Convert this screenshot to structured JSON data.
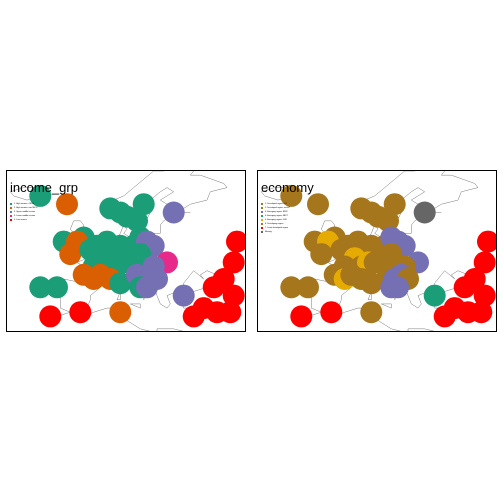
{
  "panels": [
    {
      "id": "income",
      "title": "income_grp",
      "legend": [
        {
          "label": "1. High income: OECD",
          "color": "#1B9E77"
        },
        {
          "label": "2. High income: nonOECD",
          "color": "#D95F02"
        },
        {
          "label": "3. Upper middle income",
          "color": "#7570B3"
        },
        {
          "label": "4. Lower middle income",
          "color": "#E7298A"
        },
        {
          "label": "5. Low income",
          "color": "#FF0000"
        }
      ],
      "bubbles": [
        {
          "lon": -15,
          "lat": 64,
          "color": "#1B9E77"
        },
        {
          "lon": -7,
          "lat": 62,
          "color": "#D95F02"
        },
        {
          "lon": 6,
          "lat": 61,
          "color": "#1B9E77"
        },
        {
          "lon": 9,
          "lat": 60,
          "color": "#1B9E77"
        },
        {
          "lon": 16,
          "lat": 62,
          "color": "#1B9E77"
        },
        {
          "lon": 11,
          "lat": 59,
          "color": "#1B9E77"
        },
        {
          "lon": 14,
          "lat": 58,
          "color": "#1B9E77"
        },
        {
          "lon": 25,
          "lat": 60,
          "color": "#7570B3"
        },
        {
          "lon": -8,
          "lat": 53,
          "color": "#1B9E77"
        },
        {
          "lon": -2,
          "lat": 54,
          "color": "#1B9E77"
        },
        {
          "lon": -4,
          "lat": 53,
          "color": "#D95F02"
        },
        {
          "lon": -6,
          "lat": 50,
          "color": "#D95F02"
        },
        {
          "lon": 0,
          "lat": 51,
          "color": "#1B9E77"
        },
        {
          "lon": 2,
          "lat": 52,
          "color": "#1B9E77"
        },
        {
          "lon": 5,
          "lat": 53,
          "color": "#1B9E77"
        },
        {
          "lon": 7,
          "lat": 51,
          "color": "#1B9E77"
        },
        {
          "lon": 9,
          "lat": 52,
          "color": "#1B9E77"
        },
        {
          "lon": 13,
          "lat": 52,
          "color": "#1B9E77"
        },
        {
          "lon": 11,
          "lat": 50,
          "color": "#1B9E77"
        },
        {
          "lon": 15,
          "lat": 54,
          "color": "#1B9E77"
        },
        {
          "lon": 17,
          "lat": 53,
          "color": "#7570B3"
        },
        {
          "lon": 19,
          "lat": 52,
          "color": "#7570B3"
        },
        {
          "lon": 4,
          "lat": 49,
          "color": "#1B9E77"
        },
        {
          "lon": 1,
          "lat": 47,
          "color": "#1B9E77"
        },
        {
          "lon": 6,
          "lat": 47,
          "color": "#1B9E77"
        },
        {
          "lon": 8,
          "lat": 48,
          "color": "#1B9E77"
        },
        {
          "lon": 10,
          "lat": 48,
          "color": "#1B9E77"
        },
        {
          "lon": 13,
          "lat": 48,
          "color": "#1B9E77"
        },
        {
          "lon": 15,
          "lat": 50,
          "color": "#1B9E77"
        },
        {
          "lon": 23,
          "lat": 48,
          "color": "#E7298A"
        },
        {
          "lon": 19,
          "lat": 47,
          "color": "#7570B3"
        },
        {
          "lon": -2,
          "lat": 45,
          "color": "#D95F02"
        },
        {
          "lon": 1,
          "lat": 44,
          "color": "#D95F02"
        },
        {
          "lon": 3,
          "lat": 45,
          "color": "#D95F02"
        },
        {
          "lon": 6,
          "lat": 44,
          "color": "#D95F02"
        },
        {
          "lon": 9,
          "lat": 43,
          "color": "#1B9E77"
        },
        {
          "lon": 14,
          "lat": 45,
          "color": "#7570B3"
        },
        {
          "lon": 16,
          "lat": 44,
          "color": "#7570B3"
        },
        {
          "lon": 18,
          "lat": 45,
          "color": "#7570B3"
        },
        {
          "lon": 20,
          "lat": 44,
          "color": "#7570B3"
        },
        {
          "lon": 15,
          "lat": 42,
          "color": "#1B9E77"
        },
        {
          "lon": 17,
          "lat": 42,
          "color": "#7570B3"
        },
        {
          "lon": -15,
          "lat": 42,
          "color": "#1B9E77"
        },
        {
          "lon": -10,
          "lat": 42,
          "color": "#1B9E77"
        },
        {
          "lon": -12,
          "lat": 35,
          "color": "#FF0000"
        },
        {
          "lon": -3,
          "lat": 36,
          "color": "#FF0000"
        },
        {
          "lon": 9,
          "lat": 36,
          "color": "#D95F02"
        },
        {
          "lon": 28,
          "lat": 40,
          "color": "#7570B3"
        },
        {
          "lon": 44,
          "lat": 53,
          "color": "#FF0000"
        },
        {
          "lon": 43,
          "lat": 48,
          "color": "#FF0000"
        },
        {
          "lon": 40,
          "lat": 44,
          "color": "#FF0000"
        },
        {
          "lon": 37,
          "lat": 42,
          "color": "#FF0000"
        },
        {
          "lon": 43,
          "lat": 40,
          "color": "#FF0000"
        },
        {
          "lon": 34,
          "lat": 37,
          "color": "#FF0000"
        },
        {
          "lon": 38,
          "lat": 36,
          "color": "#FF0000"
        },
        {
          "lon": 42,
          "lat": 36,
          "color": "#FF0000"
        },
        {
          "lon": 31,
          "lat": 35,
          "color": "#FF0000"
        }
      ]
    },
    {
      "id": "economy",
      "title": "economy",
      "legend": [
        {
          "label": "1. Developed region: G7",
          "color": "#A6761D"
        },
        {
          "label": "2. Developed region: nonG7",
          "color": "#A6761D"
        },
        {
          "label": "3. Emerging region: BRIC",
          "color": "#7570B3"
        },
        {
          "label": "4. Emerging region: MIKT",
          "color": "#1B9E77"
        },
        {
          "label": "5. Emerging region: G20",
          "color": "#E6AB02"
        },
        {
          "label": "6. Developing region",
          "color": "#A6761D"
        },
        {
          "label": "7. Least developed region",
          "color": "#FF0000"
        },
        {
          "label": "Missing",
          "color": "#666666"
        }
      ],
      "bubbles": [
        {
          "lon": -15,
          "lat": 64,
          "color": "#A6761D"
        },
        {
          "lon": -7,
          "lat": 62,
          "color": "#A6761D"
        },
        {
          "lon": 6,
          "lat": 61,
          "color": "#A6761D"
        },
        {
          "lon": 9,
          "lat": 60,
          "color": "#A6761D"
        },
        {
          "lon": 16,
          "lat": 62,
          "color": "#A6761D"
        },
        {
          "lon": 11,
          "lat": 59,
          "color": "#A6761D"
        },
        {
          "lon": 14,
          "lat": 58,
          "color": "#A6761D"
        },
        {
          "lon": 25,
          "lat": 60,
          "color": "#666666"
        },
        {
          "lon": -8,
          "lat": 53,
          "color": "#A6761D"
        },
        {
          "lon": -2,
          "lat": 54,
          "color": "#A6761D"
        },
        {
          "lon": -4,
          "lat": 53,
          "color": "#E6AB02"
        },
        {
          "lon": -6,
          "lat": 50,
          "color": "#A6761D"
        },
        {
          "lon": 0,
          "lat": 51,
          "color": "#A6761D"
        },
        {
          "lon": 2,
          "lat": 52,
          "color": "#A6761D"
        },
        {
          "lon": 5,
          "lat": 53,
          "color": "#A6761D"
        },
        {
          "lon": 7,
          "lat": 51,
          "color": "#A6761D"
        },
        {
          "lon": 9,
          "lat": 52,
          "color": "#A6761D"
        },
        {
          "lon": 13,
          "lat": 52,
          "color": "#A6761D"
        },
        {
          "lon": 11,
          "lat": 50,
          "color": "#A6761D"
        },
        {
          "lon": 15,
          "lat": 54,
          "color": "#7570B3"
        },
        {
          "lon": 17,
          "lat": 53,
          "color": "#7570B3"
        },
        {
          "lon": 19,
          "lat": 52,
          "color": "#7570B3"
        },
        {
          "lon": 4,
          "lat": 49,
          "color": "#E6AB02"
        },
        {
          "lon": 1,
          "lat": 47,
          "color": "#A6761D"
        },
        {
          "lon": 6,
          "lat": 47,
          "color": "#A6761D"
        },
        {
          "lon": 8,
          "lat": 48,
          "color": "#E6AB02"
        },
        {
          "lon": 10,
          "lat": 48,
          "color": "#A6761D"
        },
        {
          "lon": 13,
          "lat": 48,
          "color": "#A6761D"
        },
        {
          "lon": 15,
          "lat": 50,
          "color": "#A6761D"
        },
        {
          "lon": 23,
          "lat": 48,
          "color": "#7570B3"
        },
        {
          "lon": 19,
          "lat": 47,
          "color": "#A6761D"
        },
        {
          "lon": -2,
          "lat": 45,
          "color": "#A6761D"
        },
        {
          "lon": 1,
          "lat": 44,
          "color": "#E6AB02"
        },
        {
          "lon": 3,
          "lat": 45,
          "color": "#A6761D"
        },
        {
          "lon": 6,
          "lat": 44,
          "color": "#A6761D"
        },
        {
          "lon": 9,
          "lat": 43,
          "color": "#A6761D"
        },
        {
          "lon": 14,
          "lat": 45,
          "color": "#A6761D"
        },
        {
          "lon": 16,
          "lat": 44,
          "color": "#7570B3"
        },
        {
          "lon": 18,
          "lat": 45,
          "color": "#7570B3"
        },
        {
          "lon": 20,
          "lat": 44,
          "color": "#A6761D"
        },
        {
          "lon": 15,
          "lat": 42,
          "color": "#7570B3"
        },
        {
          "lon": 17,
          "lat": 42,
          "color": "#7570B3"
        },
        {
          "lon": -15,
          "lat": 42,
          "color": "#A6761D"
        },
        {
          "lon": -10,
          "lat": 42,
          "color": "#A6761D"
        },
        {
          "lon": -12,
          "lat": 35,
          "color": "#FF0000"
        },
        {
          "lon": -3,
          "lat": 36,
          "color": "#FF0000"
        },
        {
          "lon": 9,
          "lat": 36,
          "color": "#A6761D"
        },
        {
          "lon": 28,
          "lat": 40,
          "color": "#1B9E77"
        },
        {
          "lon": 44,
          "lat": 53,
          "color": "#FF0000"
        },
        {
          "lon": 43,
          "lat": 48,
          "color": "#FF0000"
        },
        {
          "lon": 40,
          "lat": 44,
          "color": "#FF0000"
        },
        {
          "lon": 37,
          "lat": 42,
          "color": "#FF0000"
        },
        {
          "lon": 43,
          "lat": 40,
          "color": "#FF0000"
        },
        {
          "lon": 34,
          "lat": 37,
          "color": "#FF0000"
        },
        {
          "lon": 38,
          "lat": 36,
          "color": "#FF0000"
        },
        {
          "lon": 42,
          "lat": 36,
          "color": "#FF0000"
        },
        {
          "lon": 31,
          "lat": 35,
          "color": "#FF0000"
        }
      ]
    }
  ]
}
